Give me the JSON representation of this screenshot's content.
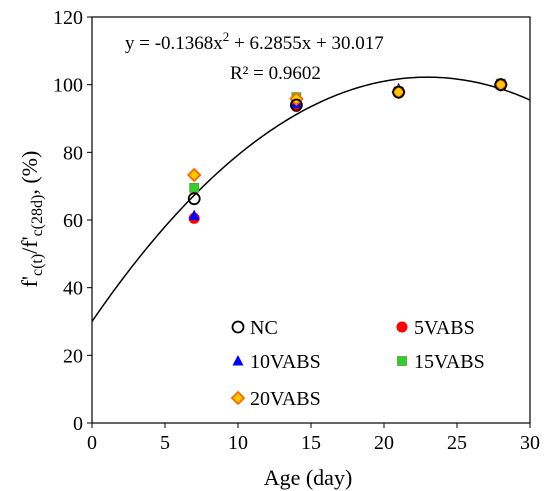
{
  "chart_data": {
    "type": "scatter",
    "xlabel": "Age (day)",
    "ylabel": {
      "p1": "f'",
      "s1": "c(t)",
      "p2": "/f'",
      "s2": "c(28d)",
      "p3": ", (%)"
    },
    "xlim": [
      0,
      30
    ],
    "ylim": [
      0,
      120
    ],
    "xticks": [
      0,
      5,
      10,
      15,
      20,
      25,
      30
    ],
    "yticks": [
      0,
      20,
      40,
      60,
      80,
      100,
      120
    ],
    "grid": false,
    "legend_position": "bottom-right",
    "series": [
      {
        "name": "NC",
        "marker": "circle-open",
        "color": "#000000",
        "points": [
          [
            7,
            66.3
          ],
          [
            14,
            94
          ],
          [
            21,
            97.8
          ],
          [
            28,
            100
          ]
        ]
      },
      {
        "name": "5VABS",
        "marker": "circle",
        "color": "#ff0000",
        "points": [
          [
            7,
            60.5
          ],
          [
            14,
            93.5
          ],
          [
            21,
            97.5
          ],
          [
            28,
            100
          ]
        ]
      },
      {
        "name": "10VABS",
        "marker": "triangle",
        "color": "#0000ff",
        "points": [
          [
            7,
            61.3
          ],
          [
            14,
            94.5
          ],
          [
            21,
            98.8
          ],
          [
            28,
            100
          ]
        ]
      },
      {
        "name": "15VABS",
        "marker": "square",
        "color": "#33cc33",
        "points": [
          [
            7,
            69.5
          ],
          [
            14,
            96.3
          ],
          [
            21,
            98
          ],
          [
            28,
            100.3
          ]
        ]
      },
      {
        "name": "20VABS",
        "marker": "diamond",
        "color": "#ff6600",
        "points": [
          [
            7,
            73.3
          ],
          [
            14,
            95.8
          ],
          [
            21,
            97.8
          ],
          [
            28,
            100
          ]
        ]
      }
    ],
    "trendline": {
      "coefficients": {
        "a": -0.1368,
        "b": 6.2855,
        "c": 30.017
      },
      "color": "#000000"
    },
    "annotations": {
      "equation_main": "y = -0.1368x",
      "equation_exp": "2",
      "equation_rest": " + 6.2855x + 30.017",
      "r_squared": "R² = 0.9602"
    }
  }
}
